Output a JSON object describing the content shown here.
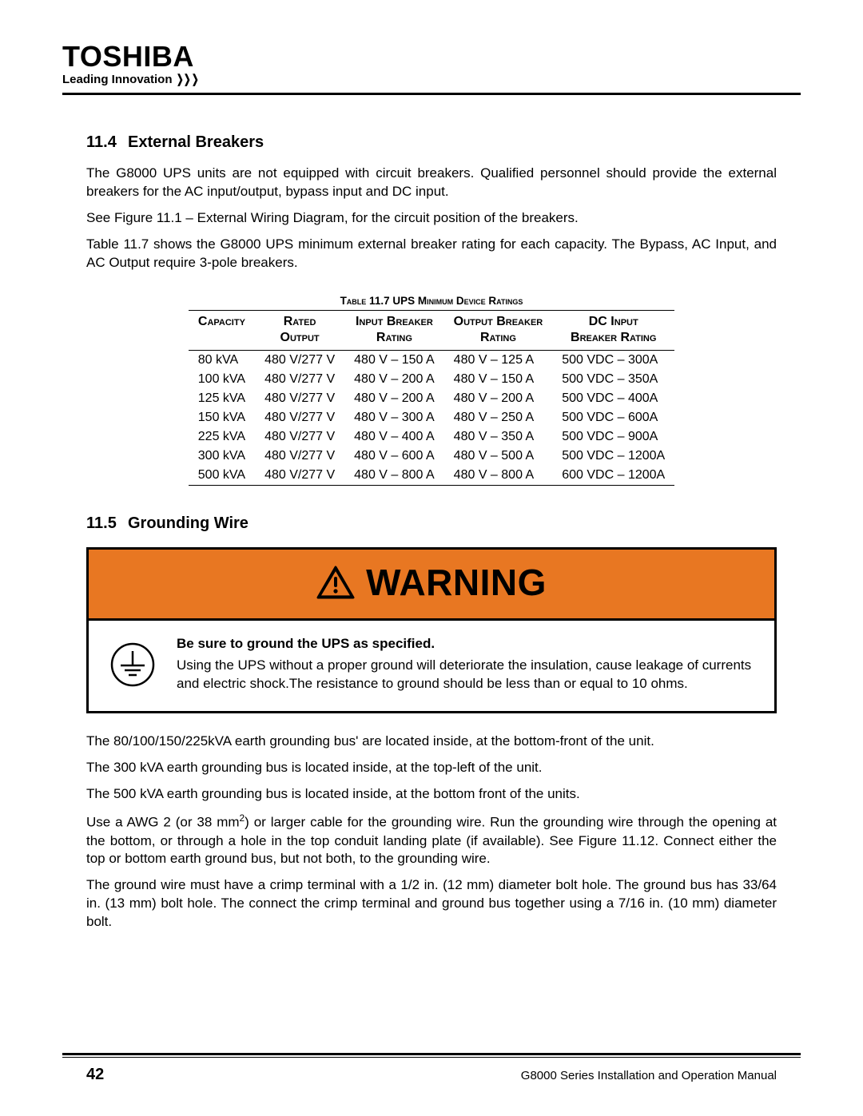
{
  "header": {
    "brand": "TOSHIBA",
    "tagline": "Leading Innovation"
  },
  "section1": {
    "number": "11.4",
    "title": "External Breakers",
    "para1": "The G8000 UPS units are not equipped with circuit breakers. Qualified personnel should provide the external breakers for the AC input/output, bypass input and DC input.",
    "para2": "See Figure 11.1 – External Wiring Diagram, for the circuit position of the breakers.",
    "para3": "Table 11.7 shows the G8000 UPS minimum external breaker rating for each capacity.  The Bypass, AC Input, and AC Output require 3-pole breakers."
  },
  "table": {
    "caption": "Table 11.7 UPS Minimum Device Ratings",
    "columns": [
      {
        "line1": "Capacity",
        "line2": ""
      },
      {
        "line1": "Rated",
        "line2": "Output"
      },
      {
        "line1": "Input Breaker",
        "line2": "Rating"
      },
      {
        "line1": "Output Breaker",
        "line2": "Rating"
      },
      {
        "line1": "DC Input",
        "line2": "Breaker Rating"
      }
    ],
    "rows": [
      [
        "80 kVA",
        "480 V/277 V",
        "480 V – 150 A",
        "480 V – 125 A",
        "500 VDC – 300A"
      ],
      [
        "100 kVA",
        "480 V/277 V",
        "480 V – 200 A",
        "480 V – 150 A",
        "500 VDC – 350A"
      ],
      [
        "125 kVA",
        "480 V/277 V",
        "480 V – 200 A",
        "480 V – 200 A",
        "500 VDC – 400A"
      ],
      [
        "150 kVA",
        "480 V/277 V",
        "480 V – 300 A",
        "480 V – 250 A",
        "500 VDC – 600A"
      ],
      [
        "225 kVA",
        "480 V/277 V",
        "480 V – 400 A",
        "480 V – 350 A",
        "500 VDC – 900A"
      ],
      [
        "300 kVA",
        "480 V/277 V",
        "480 V – 600 A",
        "480 V – 500 A",
        "500 VDC – 1200A"
      ],
      [
        "500 kVA",
        "480 V/277 V",
        "480 V – 800 A",
        "480 V – 800 A",
        "600 VDC – 1200A"
      ]
    ]
  },
  "section2": {
    "number": "11.5",
    "title": "Grounding Wire"
  },
  "warning": {
    "label": "WARNING",
    "header_bg": "#e87722",
    "bold": "Be sure to ground the UPS as specified.",
    "body": "Using the UPS without a proper ground will deteriorate the insulation, cause leakage of currents and electric shock.The resistance to ground should be less than or equal to 10 ohms."
  },
  "grounding": {
    "p1": "The 80/100/150/225kVA earth grounding bus' are located inside, at the bottom-front of the unit.",
    "p2": "The 300 kVA earth grounding bus is located inside, at the top-left of the unit.",
    "p3": "The 500 kVA earth grounding bus is located inside, at the bottom front of the units.",
    "p4a": "Use a AWG 2 (or 38 mm",
    "p4b": ") or larger cable for the grounding wire. Run the grounding wire through the opening at the bottom, or through a hole in the top conduit landing plate (if available). See Figure 11.12. Connect either the top or bottom earth ground bus, but not both, to the grounding wire.",
    "p5": "The ground wire must have a crimp terminal with a 1/2 in. (12 mm) diameter bolt hole. The ground bus has 33/64 in. (13 mm) bolt hole. The connect the crimp terminal and ground bus together using a 7/16 in. (10 mm) diameter bolt."
  },
  "footer": {
    "page": "42",
    "doc": "G8000 Series Installation and Operation Manual"
  }
}
